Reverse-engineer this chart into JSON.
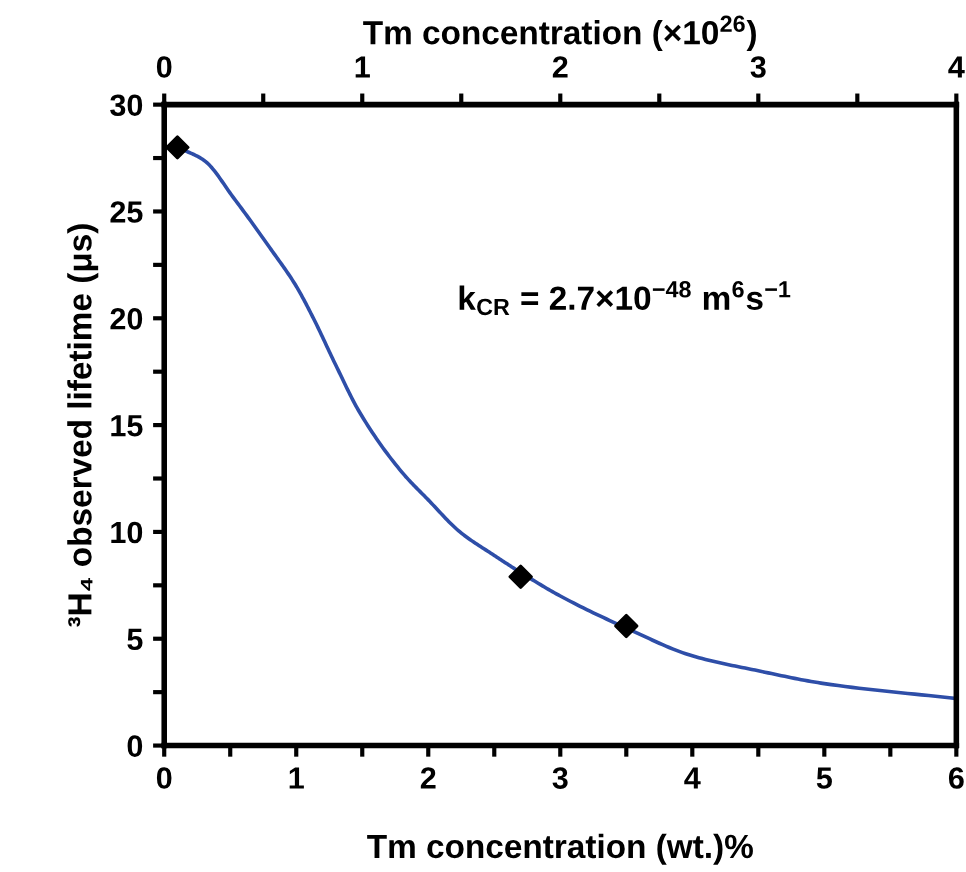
{
  "chart_data": {
    "type": "scatter",
    "xlabel": "Tm concentration (wt.)%",
    "ylabel": "³H₄ observed lifetime (μs)",
    "x2label": "Tm concentration (×10$^{26}$)",
    "annotations": [
      "k$_{CR}$ = 2.7×10$^{−48}$ m$^{6}$s$^{−1}$"
    ],
    "series": [
      {
        "type": "line",
        "color": "#2e4ea8",
        "marker": "none",
        "line_style": "solid",
        "x": [
          0.1,
          0.3,
          0.53,
          0.8,
          1.0,
          1.13,
          1.3,
          1.48,
          1.8,
          2.0,
          2.24,
          2.5,
          2.7,
          3.0,
          3.5,
          4.0,
          4.5,
          5.0,
          6.0
        ],
        "values": [
          28,
          27.4,
          25.6,
          23.3,
          21.5,
          20,
          17.8,
          15.6,
          12.8,
          11.5,
          10,
          8.9,
          8.1,
          7.0,
          5.5,
          4.2,
          3.5,
          2.9,
          2.2
        ]
      },
      {
        "color": "#000000",
        "marker": "diamond",
        "x": [
          0.1,
          2.7,
          3.5
        ],
        "values": [
          28,
          7.9,
          5.6
        ]
      }
    ],
    "xlim": [
      0,
      6
    ],
    "ylim": [
      0,
      30
    ],
    "xticks": [
      0,
      {
        "value": 0.5,
        "label": null
      },
      1,
      {
        "value": 1.5,
        "label": null
      },
      2,
      {
        "value": 2.5,
        "label": null
      },
      3,
      {
        "value": 3.5,
        "label": null
      },
      4,
      {
        "value": 4.5,
        "label": null
      },
      5,
      {
        "value": 5.5,
        "label": null
      },
      6
    ],
    "yticks": [
      0,
      {
        "value": 2.5,
        "label": null
      },
      5,
      {
        "value": 7.5,
        "label": null
      },
      10,
      {
        "value": 12.5,
        "label": null
      },
      15,
      {
        "value": 17.5,
        "label": null
      },
      20,
      {
        "value": 22.5,
        "label": null
      },
      25,
      {
        "value": 27.5,
        "label": null
      },
      30
    ],
    "x2lim": [
      0,
      4
    ],
    "x2ticks": [
      0,
      {
        "value": 0.5,
        "label": null
      },
      1,
      {
        "value": 1.5,
        "label": null
      },
      2,
      {
        "value": 2.5,
        "label": null
      },
      3,
      {
        "value": 3.5,
        "label": null
      },
      4
    ],
    "grid": false,
    "legend": false
  }
}
